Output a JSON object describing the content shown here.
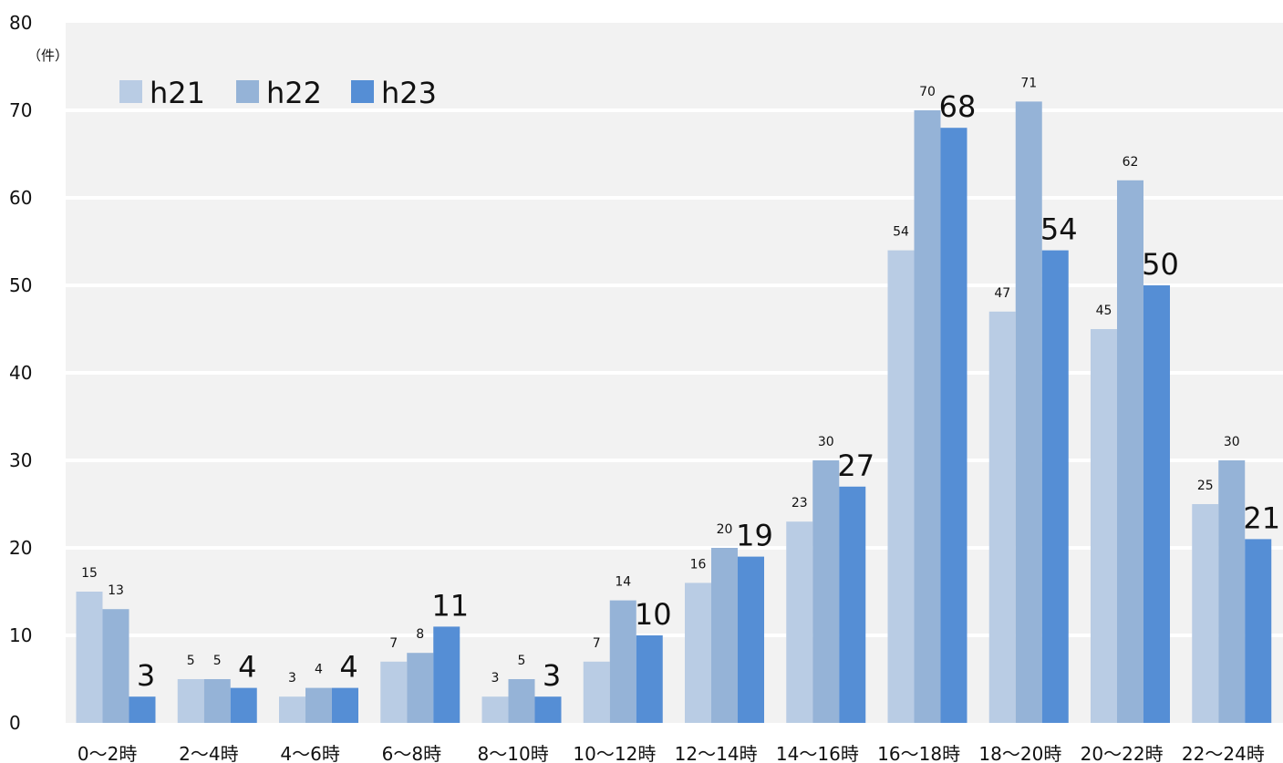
{
  "chart_data": {
    "type": "bar",
    "unit_label": "（件）",
    "categories": [
      "0〜2時",
      "2〜4時",
      "4〜6時",
      "6〜8時",
      "8〜10時",
      "10〜12時",
      "12〜14時",
      "14〜16時",
      "16〜18時",
      "18〜20時",
      "20〜22時",
      "22〜24時"
    ],
    "series": [
      {
        "name": "h21",
        "color": "#b9cce4",
        "values": [
          15,
          5,
          3,
          7,
          3,
          7,
          16,
          23,
          54,
          47,
          45,
          25
        ]
      },
      {
        "name": "h22",
        "color": "#95b3d7",
        "values": [
          13,
          5,
          4,
          8,
          5,
          14,
          20,
          30,
          70,
          71,
          62,
          30
        ]
      },
      {
        "name": "h23",
        "color": "#558ed5",
        "values": [
          3,
          4,
          4,
          11,
          3,
          10,
          19,
          27,
          68,
          54,
          50,
          21
        ]
      }
    ],
    "ylim": [
      0,
      80
    ],
    "yticks": [
      0,
      10,
      20,
      30,
      40,
      50,
      60,
      70,
      80
    ],
    "grid": true,
    "legend": "top-left",
    "plot_background": "#f2f2f2",
    "grid_color": "#ffffff"
  }
}
